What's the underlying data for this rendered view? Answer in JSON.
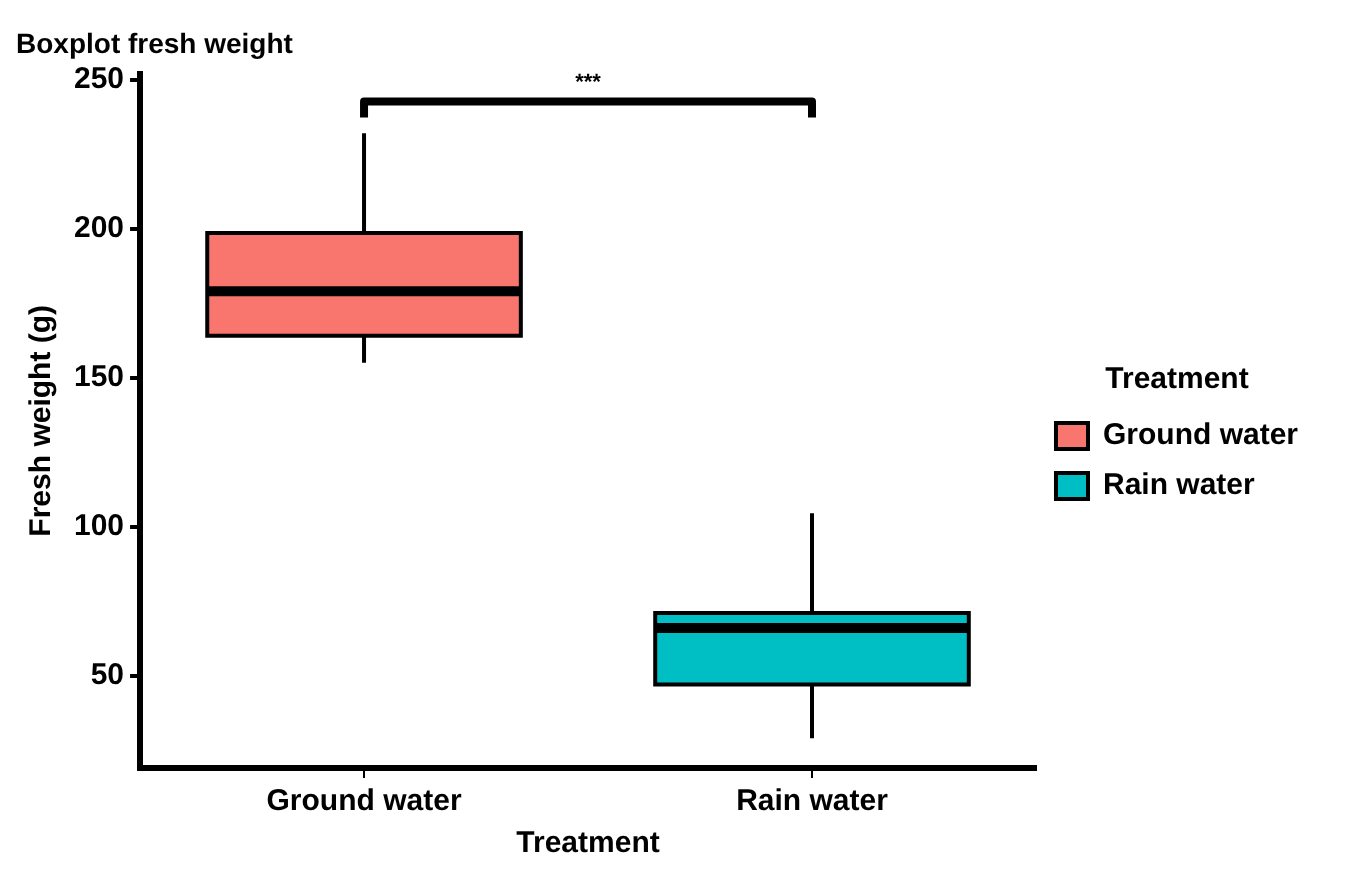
{
  "chart_data": {
    "type": "box",
    "title": "Boxplot fresh weight",
    "xlabel": "Treatment",
    "ylabel": "Fresh weight (g)",
    "legend_title": "Treatment",
    "categories": [
      "Ground water",
      "Rain water"
    ],
    "series": [
      {
        "name": "Ground water",
        "color": "#f8766d",
        "boxes": [
          {
            "low": 155,
            "q1": 164,
            "median": 179,
            "q3": 198.5,
            "high": 232
          },
          null
        ]
      },
      {
        "name": "Rain water",
        "color": "#00bfc4",
        "boxes": [
          null,
          {
            "low": 29,
            "q1": 47,
            "median": 66,
            "q3": 71,
            "high": 104.5
          }
        ]
      }
    ],
    "ylim": [
      19,
      252
    ],
    "yticks": [
      50,
      100,
      150,
      200,
      250
    ],
    "annotations": [
      "***"
    ],
    "grid": false,
    "legend": "right"
  }
}
